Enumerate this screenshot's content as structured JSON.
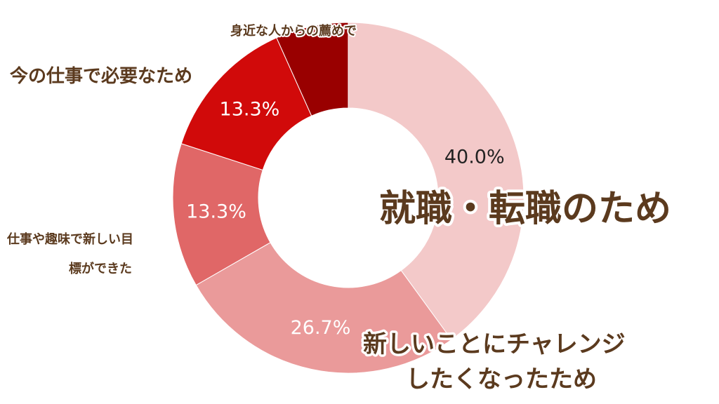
{
  "chart_data": {
    "type": "pie",
    "categories": [
      "就職・転職のため",
      "新しいことにチャレンジしたくなったため",
      "仕事や趣味で新しい目標ができた",
      "今の仕事で必要なため",
      "身近な人からの薦めで"
    ],
    "label_lines": [
      [
        "就職・転職のため"
      ],
      [
        "新しいことにチャレンジ",
        "したくなったため"
      ],
      [
        "仕事や趣味で新しい目",
        "標ができた"
      ],
      [
        "今の仕事で必要なため"
      ],
      [
        "身近な人からの薦めで"
      ]
    ],
    "values": [
      40.0,
      26.7,
      13.3,
      13.3,
      6.7
    ],
    "data_labels": [
      "40.0%",
      "26.7%",
      "13.3%",
      "13.3%",
      ""
    ],
    "colors": [
      "#f3c9c9",
      "#ea9a9a",
      "#e06767",
      "#d10a0a",
      "#990000"
    ],
    "label_colors": [
      "#222222",
      "#ffffff",
      "#ffffff",
      "#ffffff",
      "#ffffff"
    ],
    "text_color": "#5b3a1e",
    "donut": true
  }
}
